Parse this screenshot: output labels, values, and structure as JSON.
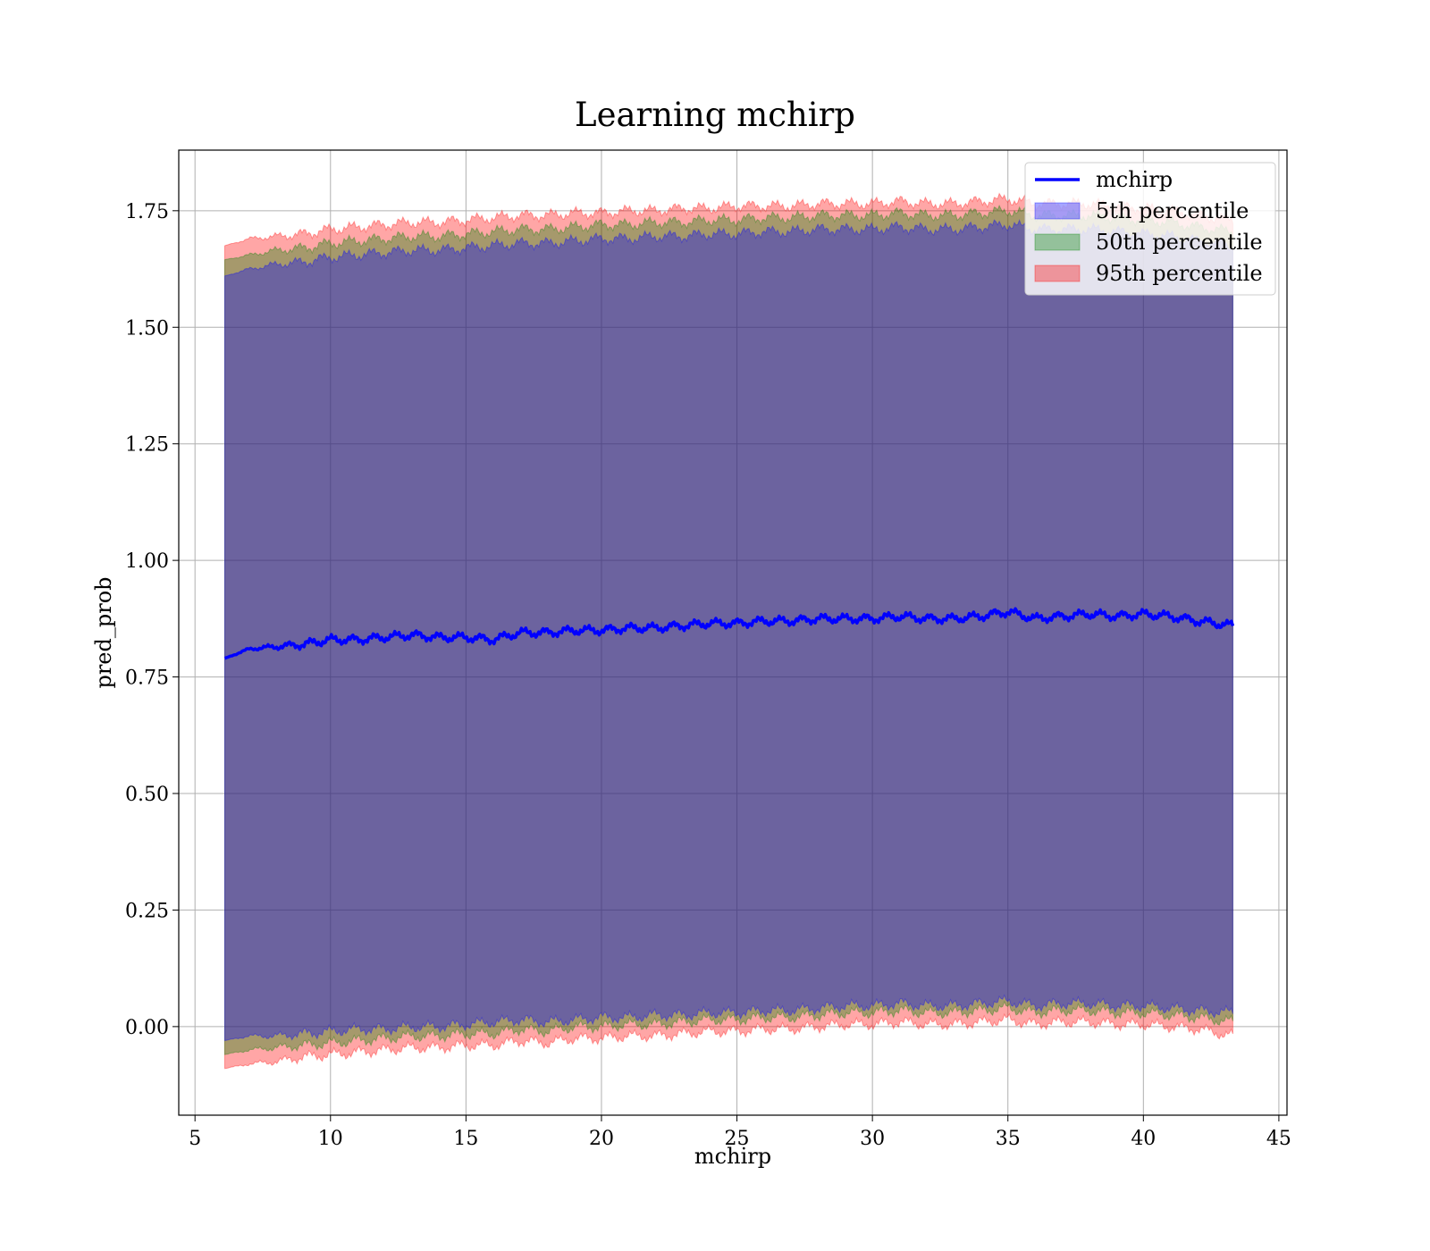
{
  "chart_data": {
    "type": "area",
    "title": "Learning mchirp",
    "xlabel": "mchirp",
    "ylabel": "pred_prob",
    "xlim": [
      4.4,
      45.3
    ],
    "ylim": [
      -0.19,
      1.88
    ],
    "xticks": [
      5,
      10,
      15,
      20,
      25,
      30,
      35,
      40,
      45
    ],
    "yticks": [
      0.0,
      0.25,
      0.5,
      0.75,
      1.0,
      1.25,
      1.5,
      1.75
    ],
    "grid": true,
    "legend_position": "top-right",
    "x_range_data": [
      6.1,
      43.3
    ],
    "series": [
      {
        "name": "mchirp",
        "kind": "line",
        "color": "#0000ff",
        "x": [
          6.1,
          7.0,
          8.0,
          9.0,
          10.0,
          11.0,
          12.0,
          13.0,
          14.0,
          15.0,
          16.0,
          17.0,
          18.0,
          19.0,
          20.0,
          21.0,
          22.0,
          23.0,
          24.0,
          25.0,
          26.0,
          27.0,
          28.0,
          29.0,
          30.0,
          31.0,
          32.0,
          33.0,
          34.0,
          35.0,
          36.0,
          37.0,
          38.0,
          39.0,
          40.0,
          41.0,
          42.0,
          43.3
        ],
        "y": [
          0.79,
          0.81,
          0.815,
          0.82,
          0.83,
          0.83,
          0.835,
          0.84,
          0.835,
          0.835,
          0.83,
          0.845,
          0.845,
          0.85,
          0.85,
          0.855,
          0.855,
          0.86,
          0.865,
          0.865,
          0.87,
          0.87,
          0.875,
          0.875,
          0.875,
          0.88,
          0.875,
          0.875,
          0.88,
          0.89,
          0.875,
          0.88,
          0.885,
          0.88,
          0.885,
          0.88,
          0.87,
          0.86
        ]
      },
      {
        "name": "5th percentile",
        "kind": "band",
        "color": "#0000ff",
        "x": [
          6.1,
          7.0,
          8.0,
          9.0,
          10.0,
          11.0,
          12.0,
          13.0,
          14.0,
          15.0,
          16.0,
          17.0,
          18.0,
          19.0,
          20.0,
          21.0,
          22.0,
          23.0,
          24.0,
          25.0,
          26.0,
          27.0,
          28.0,
          29.0,
          30.0,
          31.0,
          32.0,
          33.0,
          34.0,
          35.0,
          36.0,
          37.0,
          38.0,
          39.0,
          40.0,
          41.0,
          42.0,
          43.3
        ],
        "lower": [
          -0.03,
          -0.02,
          -0.02,
          -0.015,
          -0.01,
          -0.005,
          -0.005,
          0.0,
          0.0,
          0.005,
          0.01,
          0.015,
          0.01,
          0.015,
          0.02,
          0.02,
          0.025,
          0.025,
          0.03,
          0.03,
          0.035,
          0.035,
          0.04,
          0.045,
          0.045,
          0.05,
          0.045,
          0.045,
          0.05,
          0.055,
          0.045,
          0.05,
          0.05,
          0.045,
          0.045,
          0.04,
          0.035,
          0.03
        ],
        "upper": [
          1.61,
          1.625,
          1.635,
          1.64,
          1.65,
          1.655,
          1.66,
          1.665,
          1.665,
          1.67,
          1.675,
          1.68,
          1.68,
          1.685,
          1.69,
          1.69,
          1.695,
          1.695,
          1.7,
          1.7,
          1.705,
          1.705,
          1.71,
          1.71,
          1.71,
          1.715,
          1.71,
          1.71,
          1.715,
          1.72,
          1.71,
          1.71,
          1.71,
          1.705,
          1.7,
          1.695,
          1.685,
          1.675
        ]
      },
      {
        "name": "50th percentile",
        "kind": "band",
        "color": "#008000",
        "x": [
          6.1,
          7.0,
          8.0,
          9.0,
          10.0,
          11.0,
          12.0,
          13.0,
          14.0,
          15.0,
          16.0,
          17.0,
          18.0,
          19.0,
          20.0,
          21.0,
          22.0,
          23.0,
          24.0,
          25.0,
          26.0,
          27.0,
          28.0,
          29.0,
          30.0,
          31.0,
          32.0,
          33.0,
          34.0,
          35.0,
          36.0,
          37.0,
          38.0,
          39.0,
          40.0,
          41.0,
          42.0,
          43.3
        ],
        "lower": [
          -0.06,
          -0.05,
          -0.045,
          -0.04,
          -0.035,
          -0.03,
          -0.025,
          -0.02,
          -0.02,
          -0.015,
          -0.015,
          -0.005,
          -0.01,
          0.0,
          0.0,
          0.005,
          0.005,
          0.01,
          0.015,
          0.015,
          0.02,
          0.02,
          0.025,
          0.03,
          0.03,
          0.035,
          0.03,
          0.03,
          0.035,
          0.04,
          0.03,
          0.035,
          0.035,
          0.03,
          0.03,
          0.025,
          0.02,
          0.01
        ],
        "upper": [
          1.645,
          1.655,
          1.665,
          1.67,
          1.68,
          1.685,
          1.69,
          1.695,
          1.695,
          1.7,
          1.705,
          1.71,
          1.71,
          1.715,
          1.72,
          1.72,
          1.725,
          1.725,
          1.73,
          1.73,
          1.735,
          1.735,
          1.74,
          1.74,
          1.74,
          1.745,
          1.74,
          1.74,
          1.745,
          1.75,
          1.74,
          1.74,
          1.74,
          1.735,
          1.73,
          1.725,
          1.715,
          1.705
        ]
      },
      {
        "name": "95th percentile",
        "kind": "band",
        "color": "#ff0000",
        "x": [
          6.1,
          7.0,
          8.0,
          9.0,
          10.0,
          11.0,
          12.0,
          13.0,
          14.0,
          15.0,
          16.0,
          17.0,
          18.0,
          19.0,
          20.0,
          21.0,
          22.0,
          23.0,
          24.0,
          25.0,
          26.0,
          27.0,
          28.0,
          29.0,
          30.0,
          31.0,
          32.0,
          33.0,
          34.0,
          35.0,
          36.0,
          37.0,
          38.0,
          39.0,
          40.0,
          41.0,
          42.0,
          43.3
        ],
        "lower": [
          -0.09,
          -0.08,
          -0.075,
          -0.065,
          -0.06,
          -0.055,
          -0.05,
          -0.045,
          -0.045,
          -0.04,
          -0.04,
          -0.03,
          -0.035,
          -0.025,
          -0.025,
          -0.02,
          -0.02,
          -0.015,
          -0.01,
          -0.01,
          -0.005,
          -0.005,
          0.0,
          0.005,
          0.005,
          0.01,
          0.005,
          0.005,
          0.01,
          0.015,
          0.005,
          0.01,
          0.01,
          0.005,
          0.005,
          0.0,
          -0.005,
          -0.02
        ],
        "upper": [
          1.675,
          1.69,
          1.695,
          1.7,
          1.71,
          1.715,
          1.72,
          1.725,
          1.725,
          1.73,
          1.735,
          1.74,
          1.74,
          1.745,
          1.745,
          1.75,
          1.75,
          1.755,
          1.755,
          1.76,
          1.76,
          1.76,
          1.765,
          1.765,
          1.765,
          1.77,
          1.765,
          1.765,
          1.77,
          1.775,
          1.765,
          1.765,
          1.765,
          1.76,
          1.755,
          1.75,
          1.74,
          1.73
        ]
      }
    ]
  }
}
